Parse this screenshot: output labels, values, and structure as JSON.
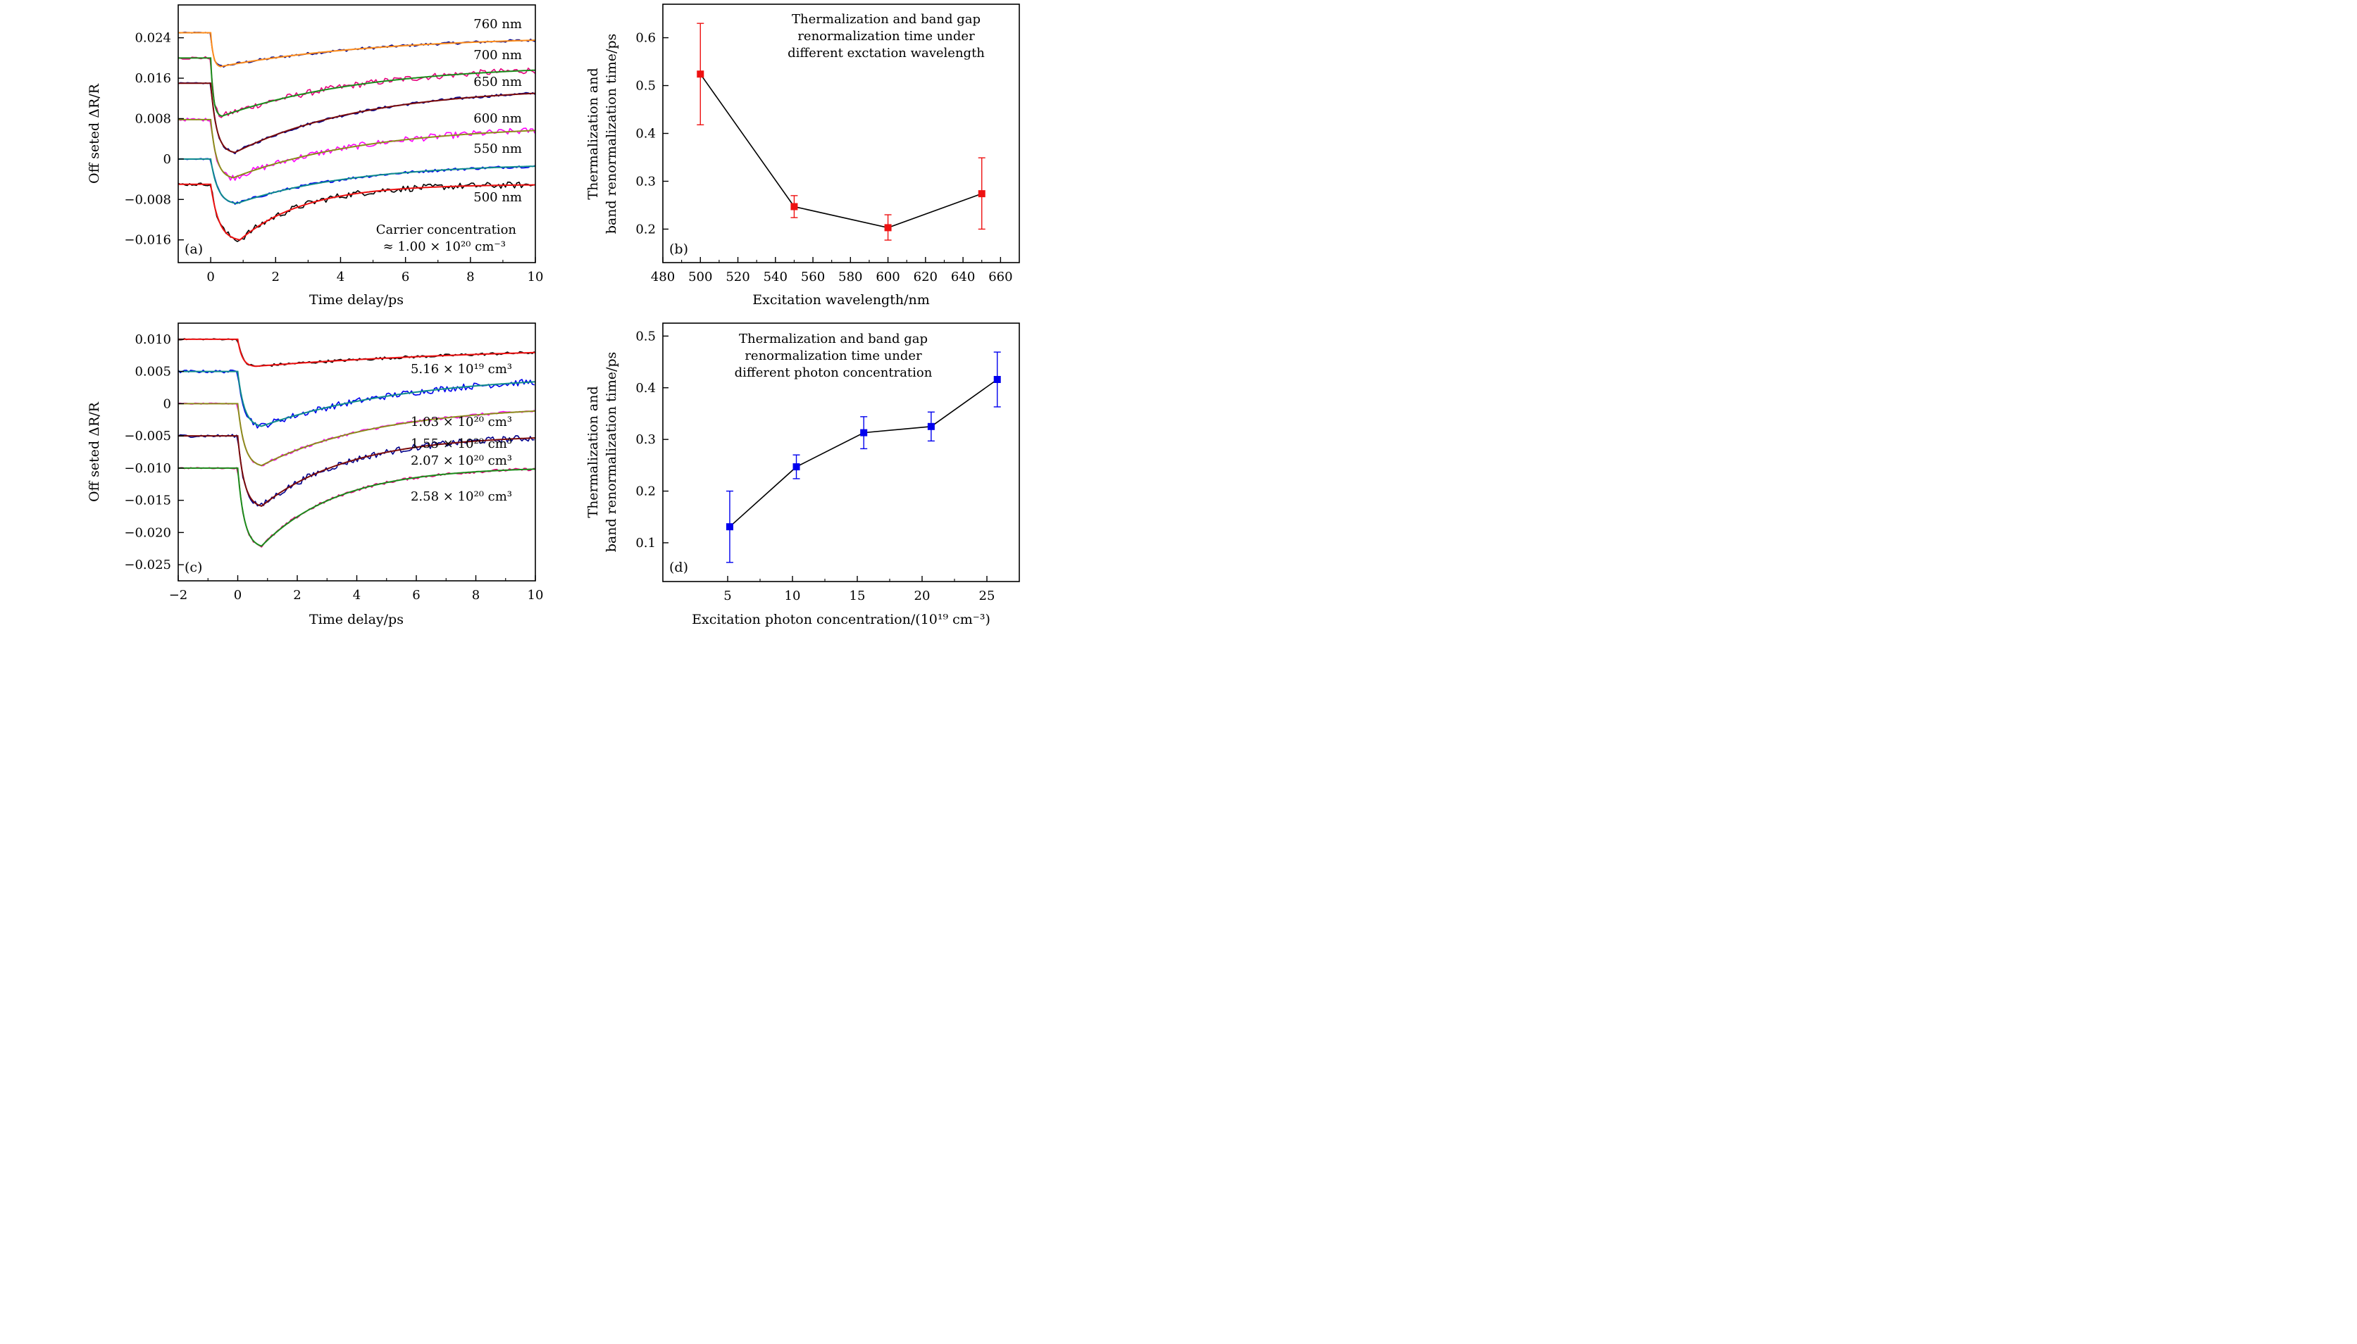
{
  "figure": {
    "panels": [
      "a",
      "b",
      "c",
      "d"
    ]
  },
  "chart_data": [
    {
      "id": "a",
      "type": "line",
      "panel_label": "(a)",
      "xlabel": "Time delay/ps",
      "ylabel": "Off seted ΔR/R",
      "xlim": [
        -1,
        10
      ],
      "ylim": [
        -0.0205,
        0.0305
      ],
      "xticks": [
        0,
        2,
        4,
        6,
        8,
        10
      ],
      "xtick_labels": [
        "0",
        "2",
        "4",
        "6",
        "8",
        "10"
      ],
      "yticks": [
        -0.016,
        -0.008,
        0,
        0.008,
        0.016,
        0.024
      ],
      "ytick_labels": [
        "−0.016",
        "−0.008",
        "0",
        "0.008",
        "0.016",
        "0.024"
      ],
      "annotation": [
        "Carrier concentration",
        "≈ 1.00 × 10²⁰ cm⁻³"
      ],
      "series": [
        {
          "name": "760 nm",
          "baseline": 0.025,
          "minimum": 0.0183,
          "t_min": 0.3,
          "final": 0.0244,
          "tau_rise": 0.08,
          "tau_decay": 5.0,
          "data_color": "#00008b",
          "fit_color": "#ff8c1a"
        },
        {
          "name": "700 nm",
          "baseline": 0.02,
          "minimum": 0.0085,
          "t_min": 0.35,
          "final": 0.0188,
          "tau_rise": 0.08,
          "tau_decay": 4.5,
          "data_color": "#e6007e",
          "fit_color": "#1a8c1a"
        },
        {
          "name": "650 nm",
          "baseline": 0.015,
          "minimum": 0.0013,
          "t_min": 0.75,
          "final": 0.0143,
          "tau_rise": 0.18,
          "tau_decay": 4.0,
          "data_color": "#00008b",
          "fit_color": "#7a0a0a"
        },
        {
          "name": "600 nm",
          "baseline": 0.0078,
          "minimum": -0.0037,
          "t_min": 0.7,
          "final": 0.0068,
          "tau_rise": 0.18,
          "tau_decay": 4.2,
          "data_color": "#ff00ff",
          "fit_color": "#8c8c1a"
        },
        {
          "name": "550 nm",
          "baseline": 0.0,
          "minimum": -0.0088,
          "t_min": 0.8,
          "final": -0.0008,
          "tau_rise": 0.22,
          "tau_decay": 3.6,
          "data_color": "#0000ee",
          "fit_color": "#0f8c8c"
        },
        {
          "name": "500 nm",
          "baseline": -0.005,
          "minimum": -0.016,
          "t_min": 0.9,
          "final": -0.005,
          "tau_rise": 0.25,
          "tau_decay": 2.0,
          "data_color": "#000000",
          "fit_color": "#ee1111"
        }
      ]
    },
    {
      "id": "b",
      "type": "scatter",
      "panel_label": "(b)",
      "title": [
        "Thermalization and band gap",
        "renormalization time under",
        "different exctation wavelength"
      ],
      "xlabel": "Excitation wavelength/nm",
      "ylabel": [
        "Thermalization and",
        "band renormalization time/ps"
      ],
      "xlim": [
        480,
        670
      ],
      "ylim": [
        0.13,
        0.67
      ],
      "xticks": [
        480,
        500,
        520,
        540,
        560,
        580,
        600,
        620,
        640,
        660
      ],
      "yticks": [
        0.2,
        0.3,
        0.4,
        0.5,
        0.6
      ],
      "color": "#ee1111",
      "x": [
        500,
        550,
        600,
        650
      ],
      "y": [
        0.524,
        0.247,
        0.203,
        0.274
      ],
      "y_err_low": [
        0.418,
        0.224,
        0.177,
        0.2
      ],
      "y_err_high": [
        0.63,
        0.27,
        0.23,
        0.349
      ]
    },
    {
      "id": "c",
      "type": "line",
      "panel_label": "(c)",
      "xlabel": "Time delay/ps",
      "ylabel": "Off seted ΔR/R",
      "xlim": [
        -2,
        10
      ],
      "ylim": [
        -0.0275,
        0.0125
      ],
      "xticks": [
        -2,
        0,
        2,
        4,
        6,
        8,
        10
      ],
      "xtick_labels": [
        "−2",
        "0",
        "2",
        "4",
        "6",
        "8",
        "10"
      ],
      "yticks": [
        -0.025,
        -0.02,
        -0.015,
        -0.01,
        -0.005,
        0,
        0.005,
        0.01
      ],
      "ytick_labels": [
        "−0.025",
        "−0.020",
        "−0.015",
        "−0.010",
        "−0.005",
        "0",
        "0.005",
        "0.010"
      ],
      "series": [
        {
          "name": "5.16 × 10¹⁹ cm³",
          "baseline": 0.01,
          "minimum": 0.0058,
          "t_min": 0.6,
          "final": 0.0091,
          "tau_rise": 0.15,
          "tau_decay": 9.0,
          "data_color": "#000000",
          "fit_color": "#ee1111"
        },
        {
          "name": "1.03 × 10²⁰ cm³",
          "baseline": 0.005,
          "minimum": -0.0035,
          "t_min": 0.8,
          "final": 0.0047,
          "tau_rise": 0.22,
          "tau_decay": 5.0,
          "data_color": "#0000ee",
          "fit_color": "#0f8c8c"
        },
        {
          "name": "1.55 × 10²⁰ cm³",
          "baseline": 0.0,
          "minimum": -0.0096,
          "t_min": 0.8,
          "final": -0.0002,
          "tau_rise": 0.22,
          "tau_decay": 4.0,
          "data_color": "#ff00ff",
          "fit_color": "#8c8c1a"
        },
        {
          "name": "2.07 × 10²⁰ cm³",
          "baseline": -0.005,
          "minimum": -0.0159,
          "t_min": 0.8,
          "final": -0.0048,
          "tau_rise": 0.22,
          "tau_decay": 3.0,
          "data_color": "#00008b",
          "fit_color": "#7a0a0a"
        },
        {
          "name": "2.58 × 10²⁰ cm³",
          "baseline": -0.01,
          "minimum": -0.0221,
          "t_min": 0.8,
          "final": -0.0098,
          "tau_rise": 0.22,
          "tau_decay": 2.6,
          "data_color": "#e6007e",
          "fit_color": "#1a8c1a"
        }
      ]
    },
    {
      "id": "d",
      "type": "scatter",
      "panel_label": "(d)",
      "title": [
        "Thermalization and band gap",
        "renormalization time under",
        "different photon concentration"
      ],
      "xlabel": "Excitation photon concentration/(10¹⁹ cm⁻³)",
      "ylabel": [
        "Thermalization and",
        "band renormalization time/ps"
      ],
      "xlim": [
        0,
        27.5
      ],
      "ylim": [
        0.025,
        0.525
      ],
      "xticks": [
        5,
        10,
        15,
        20,
        25
      ],
      "yticks": [
        0.1,
        0.2,
        0.3,
        0.4,
        0.5
      ],
      "color": "#0000ee",
      "x": [
        5.16,
        10.3,
        15.5,
        20.7,
        25.8
      ],
      "y": [
        0.131,
        0.247,
        0.313,
        0.325,
        0.416
      ],
      "y_err_low": [
        0.062,
        0.224,
        0.282,
        0.297,
        0.363
      ],
      "y_err_high": [
        0.2,
        0.27,
        0.344,
        0.353,
        0.469
      ]
    }
  ]
}
